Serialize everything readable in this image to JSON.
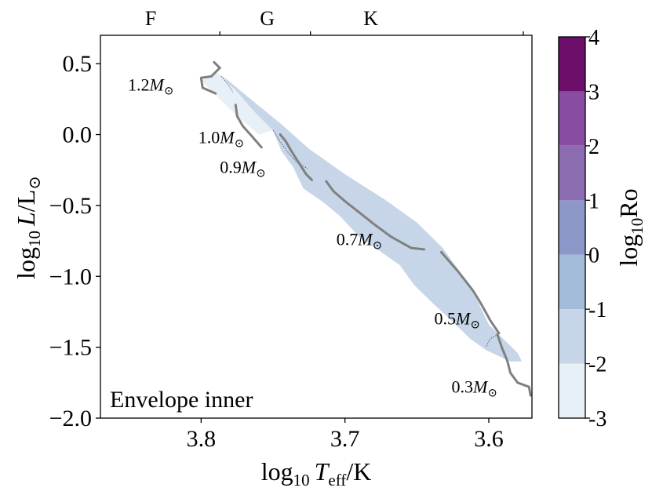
{
  "chart_data": {
    "type": "scatter",
    "title": "",
    "panel_label": "Envelope inner",
    "xlabel": {
      "prefix": "log",
      "sub": "10",
      "var": "T",
      "var_sub": "eff",
      "unit": "/K"
    },
    "ylabel": {
      "prefix": "log",
      "sub": "10",
      "var": "L",
      "unit": "/L",
      "sun": "⊙"
    },
    "xlim": [
      3.87,
      3.57
    ],
    "ylim": [
      -2.0,
      0.7
    ],
    "x_ticks": [
      3.8,
      3.7,
      3.6
    ],
    "x_tick_labels": [
      "3.8",
      "3.7",
      "3.6"
    ],
    "y_ticks": [
      0.5,
      0.0,
      -0.5,
      -1.0,
      -1.5,
      -2.0
    ],
    "y_tick_labels": [
      "0.5",
      "0.0",
      "−0.5",
      "−1.0",
      "−1.5",
      "−2.0"
    ],
    "spectral_types": [
      {
        "label": "F",
        "x": 3.835
      },
      {
        "label": "G",
        "x": 3.754
      },
      {
        "label": "K",
        "x": 3.682
      }
    ],
    "spectral_boundaries": [
      3.787,
      3.724,
      3.576
    ],
    "colorbar": {
      "label": "log10Ro",
      "label_prefix": "log",
      "label_sub": "10",
      "label_var": "Ro",
      "range": [
        -3,
        4
      ],
      "ticks": [
        4,
        3,
        2,
        1,
        0,
        -1,
        -2,
        -3
      ],
      "tick_labels": [
        "4",
        "3",
        "2",
        "1",
        "0",
        "-1",
        "-2",
        "-3"
      ],
      "bins": [
        {
          "from": -3,
          "to": -2,
          "color": "#e8f0f7"
        },
        {
          "from": -2,
          "to": -1,
          "color": "#c6d6e8"
        },
        {
          "from": -1,
          "to": 0,
          "color": "#a3bcd9"
        },
        {
          "from": 0,
          "to": 1,
          "color": "#8d98c8"
        },
        {
          "from": 1,
          "to": 2,
          "color": "#8c6cb0"
        },
        {
          "from": 2,
          "to": 3,
          "color": "#8a4ca2"
        },
        {
          "from": 3,
          "to": 4,
          "color": "#6d0e6b"
        }
      ]
    },
    "regions": [
      {
        "name": "log10Ro between -3 and -2",
        "color": "#e8f0f7",
        "polygon": [
          [
            3.79,
            0.44
          ],
          [
            3.786,
            0.41
          ],
          [
            3.775,
            0.3
          ],
          [
            3.762,
            0.15
          ],
          [
            3.75,
            0.03
          ],
          [
            3.76,
            0.0
          ],
          [
            3.776,
            0.14
          ],
          [
            3.788,
            0.26
          ],
          [
            3.8,
            0.38
          ]
        ]
      },
      {
        "name": "log10Ro between -2 and -1",
        "color": "#c6d6e8",
        "polygon": [
          [
            3.79,
            0.44
          ],
          [
            3.781,
            0.38
          ],
          [
            3.768,
            0.27
          ],
          [
            3.745,
            0.08
          ],
          [
            3.725,
            -0.1
          ],
          [
            3.7,
            -0.28
          ],
          [
            3.672,
            -0.46
          ],
          [
            3.65,
            -0.62
          ],
          [
            3.632,
            -0.8
          ],
          [
            3.62,
            -0.97
          ],
          [
            3.613,
            -1.08
          ],
          [
            3.607,
            -1.19
          ],
          [
            3.6,
            -1.34
          ],
          [
            3.592,
            -1.42
          ],
          [
            3.58,
            -1.54
          ],
          [
            3.577,
            -1.6
          ],
          [
            3.585,
            -1.6
          ],
          [
            3.602,
            -1.52
          ],
          [
            3.613,
            -1.44
          ],
          [
            3.625,
            -1.32
          ],
          [
            3.64,
            -1.18
          ],
          [
            3.652,
            -1.06
          ],
          [
            3.662,
            -0.92
          ],
          [
            3.676,
            -0.82
          ],
          [
            3.69,
            -0.72
          ],
          [
            3.704,
            -0.57
          ],
          [
            3.716,
            -0.47
          ],
          [
            3.729,
            -0.38
          ],
          [
            3.736,
            -0.23
          ],
          [
            3.744,
            -0.12
          ],
          [
            3.75,
            0.03
          ],
          [
            3.762,
            0.15
          ],
          [
            3.775,
            0.3
          ],
          [
            3.786,
            0.41
          ]
        ]
      }
    ],
    "boundaries": [
      {
        "name": "boundary near 1.2 Msun",
        "points": [
          [
            3.786,
            0.41
          ],
          [
            3.781,
            0.35
          ],
          [
            3.778,
            0.3
          ]
        ]
      },
      {
        "name": "boundary near 0.9 Msun",
        "points": [
          [
            3.75,
            0.03
          ],
          [
            3.745,
            -0.05
          ],
          [
            3.74,
            -0.12
          ],
          [
            3.734,
            -0.19
          ],
          [
            3.726,
            -0.24
          ]
        ]
      },
      {
        "name": "boundary near 0.5 Msun",
        "points": [
          [
            3.592,
            -1.4
          ],
          [
            3.599,
            -1.44
          ],
          [
            3.602,
            -1.5
          ]
        ]
      }
    ],
    "tracks": [
      {
        "name": "1.2 Msun track",
        "points": [
          [
            3.791,
            0.51
          ],
          [
            3.787,
            0.47
          ],
          [
            3.793,
            0.41
          ],
          [
            3.8,
            0.4
          ],
          [
            3.799,
            0.33
          ],
          [
            3.79,
            0.29
          ]
        ]
      },
      {
        "name": "1.0 Msun track",
        "points": [
          [
            3.776,
            0.21
          ],
          [
            3.775,
            0.13
          ],
          [
            3.771,
            0.06
          ],
          [
            3.764,
            -0.02
          ],
          [
            3.758,
            -0.09
          ]
        ]
      },
      {
        "name": "0.9 Msun track",
        "points": [
          [
            3.745,
            0.0
          ],
          [
            3.741,
            -0.05
          ],
          [
            3.737,
            -0.12
          ],
          [
            3.732,
            -0.2
          ],
          [
            3.727,
            -0.28
          ],
          [
            3.723,
            -0.32
          ]
        ]
      },
      {
        "name": "0.7 Msun track",
        "points": [
          [
            3.713,
            -0.33
          ],
          [
            3.708,
            -0.4
          ],
          [
            3.7,
            -0.47
          ],
          [
            3.69,
            -0.55
          ],
          [
            3.68,
            -0.63
          ],
          [
            3.668,
            -0.72
          ],
          [
            3.654,
            -0.8
          ],
          [
            3.645,
            -0.81
          ]
        ]
      },
      {
        "name": "0.5 Msun track",
        "points": [
          [
            3.633,
            -0.83
          ],
          [
            3.621,
            -0.97
          ],
          [
            3.611,
            -1.1
          ],
          [
            3.605,
            -1.2
          ],
          [
            3.599,
            -1.31
          ],
          [
            3.593,
            -1.4
          ]
        ]
      },
      {
        "name": "0.3 Msun track",
        "points": [
          [
            3.594,
            -1.41
          ],
          [
            3.591,
            -1.5
          ],
          [
            3.587,
            -1.6
          ],
          [
            3.585,
            -1.68
          ],
          [
            3.58,
            -1.75
          ],
          [
            3.572,
            -1.78
          ],
          [
            3.571,
            -1.84
          ]
        ]
      }
    ],
    "mass_labels": [
      {
        "value": "1.2",
        "x": 3.835,
        "y": 0.31
      },
      {
        "value": "1.0",
        "x": 3.786,
        "y": -0.06
      },
      {
        "value": "0.9",
        "x": 3.771,
        "y": -0.27
      },
      {
        "value": "0.7",
        "x": 3.69,
        "y": -0.78
      },
      {
        "value": "0.5",
        "x": 3.622,
        "y": -1.34
      },
      {
        "value": "0.3",
        "x": 3.61,
        "y": -1.82
      }
    ],
    "mass_unit": "M",
    "mass_unit_sub": "⊙"
  }
}
